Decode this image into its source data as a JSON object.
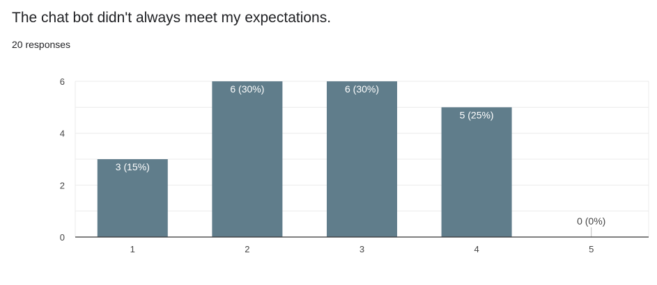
{
  "question": {
    "title": "The chat bot didn't always meet my expectations.",
    "responses": "20 responses"
  },
  "colors": {
    "bar": "#607d8b",
    "grid": "#ebebeb",
    "axis": "#333333",
    "label_inside": "#ffffff",
    "label_outside": "#444444"
  },
  "chart_data": {
    "type": "bar",
    "categories": [
      "1",
      "2",
      "3",
      "4",
      "5"
    ],
    "values": [
      3,
      6,
      6,
      5,
      0
    ],
    "data_labels": [
      "3 (15%)",
      "6 (30%)",
      "6 (30%)",
      "5 (25%)",
      "0 (0%)"
    ],
    "title": "",
    "xlabel": "",
    "ylabel": "",
    "ylim": [
      0,
      6
    ],
    "yticks": [
      0,
      2,
      4,
      6
    ],
    "grid": true,
    "legend": "none"
  }
}
